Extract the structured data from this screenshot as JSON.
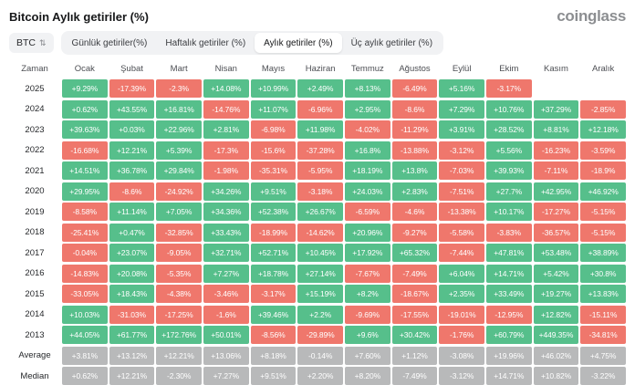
{
  "header": {
    "title": "Bitcoin Aylık getiriler (%)",
    "logo": "coinglass"
  },
  "toolbar": {
    "coin_selector": {
      "label": "BTC",
      "icon": "sort-arrows-icon"
    },
    "tabs": [
      {
        "label": "Günlük getiriler(%)",
        "active": false
      },
      {
        "label": "Haftalık getiriler (%)",
        "active": false
      },
      {
        "label": "Aylık getiriler (%)",
        "active": true
      },
      {
        "label": "Üç aylık getiriler (%)",
        "active": false
      }
    ]
  },
  "colors": {
    "positive": "#56bf8b",
    "negative": "#ef776c",
    "summary": "#b8b9ba"
  },
  "chart_data": {
    "type": "heatmap",
    "title": "Bitcoin Aylık getiriler (%)",
    "columns": [
      "Zaman",
      "Ocak",
      "Şubat",
      "Mart",
      "Nisan",
      "Mayıs",
      "Haziran",
      "Temmuz",
      "Ağustos",
      "Eylül",
      "Ekim",
      "Kasım",
      "Aralık"
    ],
    "rows": [
      {
        "label": "2025",
        "type": "year",
        "values": [
          "+9.29%",
          "-17.39%",
          "-2.3%",
          "+14.08%",
          "+10.99%",
          "+2.49%",
          "+8.13%",
          "-6.49%",
          "+5.16%",
          "-3.17%",
          "",
          ""
        ]
      },
      {
        "label": "2024",
        "type": "year",
        "values": [
          "+0.62%",
          "+43.55%",
          "+16.81%",
          "-14.76%",
          "+11.07%",
          "-6.96%",
          "+2.95%",
          "-8.6%",
          "+7.29%",
          "+10.76%",
          "+37.29%",
          "-2.85%"
        ]
      },
      {
        "label": "2023",
        "type": "year",
        "values": [
          "+39.63%",
          "+0.03%",
          "+22.96%",
          "+2.81%",
          "-6.98%",
          "+11.98%",
          "-4.02%",
          "-11.29%",
          "+3.91%",
          "+28.52%",
          "+8.81%",
          "+12.18%"
        ]
      },
      {
        "label": "2022",
        "type": "year",
        "values": [
          "-16.68%",
          "+12.21%",
          "+5.39%",
          "-17.3%",
          "-15.6%",
          "-37.28%",
          "+16.8%",
          "-13.88%",
          "-3.12%",
          "+5.56%",
          "-16.23%",
          "-3.59%"
        ]
      },
      {
        "label": "2021",
        "type": "year",
        "values": [
          "+14.51%",
          "+36.78%",
          "+29.84%",
          "-1.98%",
          "-35.31%",
          "-5.95%",
          "+18.19%",
          "+13.8%",
          "-7.03%",
          "+39.93%",
          "-7.11%",
          "-18.9%"
        ]
      },
      {
        "label": "2020",
        "type": "year",
        "values": [
          "+29.95%",
          "-8.6%",
          "-24.92%",
          "+34.26%",
          "+9.51%",
          "-3.18%",
          "+24.03%",
          "+2.83%",
          "-7.51%",
          "+27.7%",
          "+42.95%",
          "+46.92%"
        ]
      },
      {
        "label": "2019",
        "type": "year",
        "values": [
          "-8.58%",
          "+11.14%",
          "+7.05%",
          "+34.36%",
          "+52.38%",
          "+26.67%",
          "-6.59%",
          "-4.6%",
          "-13.38%",
          "+10.17%",
          "-17.27%",
          "-5.15%"
        ]
      },
      {
        "label": "2018",
        "type": "year",
        "values": [
          "-25.41%",
          "+0.47%",
          "-32.85%",
          "+33.43%",
          "-18.99%",
          "-14.62%",
          "+20.96%",
          "-9.27%",
          "-5.58%",
          "-3.83%",
          "-36.57%",
          "-5.15%"
        ]
      },
      {
        "label": "2017",
        "type": "year",
        "values": [
          "-0.04%",
          "+23.07%",
          "-9.05%",
          "+32.71%",
          "+52.71%",
          "+10.45%",
          "+17.92%",
          "+65.32%",
          "-7.44%",
          "+47.81%",
          "+53.48%",
          "+38.89%"
        ]
      },
      {
        "label": "2016",
        "type": "year",
        "values": [
          "-14.83%",
          "+20.08%",
          "-5.35%",
          "+7.27%",
          "+18.78%",
          "+27.14%",
          "-7.67%",
          "-7.49%",
          "+6.04%",
          "+14.71%",
          "+5.42%",
          "+30.8%"
        ]
      },
      {
        "label": "2015",
        "type": "year",
        "values": [
          "-33.05%",
          "+18.43%",
          "-4.38%",
          "-3.46%",
          "-3.17%",
          "+15.19%",
          "+8.2%",
          "-18.67%",
          "+2.35%",
          "+33.49%",
          "+19.27%",
          "+13.83%"
        ]
      },
      {
        "label": "2014",
        "type": "year",
        "values": [
          "+10.03%",
          "-31.03%",
          "-17.25%",
          "-1.6%",
          "+39.46%",
          "+2.2%",
          "-9.69%",
          "-17.55%",
          "-19.01%",
          "-12.95%",
          "+12.82%",
          "-15.11%"
        ]
      },
      {
        "label": "2013",
        "type": "year",
        "values": [
          "+44.05%",
          "+61.77%",
          "+172.76%",
          "+50.01%",
          "-8.56%",
          "-29.89%",
          "+9.6%",
          "+30.42%",
          "-1.76%",
          "+60.79%",
          "+449.35%",
          "-34.81%"
        ]
      },
      {
        "label": "Average",
        "type": "summary",
        "values": [
          "+3.81%",
          "+13.12%",
          "+12.21%",
          "+13.06%",
          "+8.18%",
          "-0.14%",
          "+7.60%",
          "+1.12%",
          "-3.08%",
          "+19.96%",
          "+46.02%",
          "+4.75%"
        ]
      },
      {
        "label": "Median",
        "type": "summary",
        "values": [
          "+0.62%",
          "+12.21%",
          "-2.30%",
          "+7.27%",
          "+9.51%",
          "+2.20%",
          "+8.20%",
          "-7.49%",
          "-3.12%",
          "+14.71%",
          "+10.82%",
          "-3.22%"
        ]
      }
    ]
  }
}
